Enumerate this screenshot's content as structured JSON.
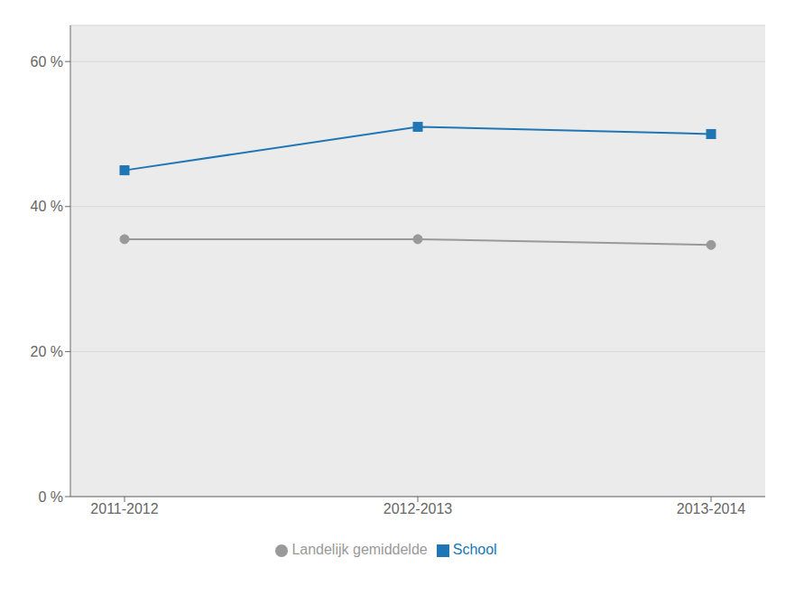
{
  "chart_data": {
    "type": "line",
    "categories": [
      "2011-2012",
      "2012-2013",
      "2013-2014"
    ],
    "series": [
      {
        "name": "School",
        "color": "#2076b4",
        "marker": "square",
        "values": [
          45.0,
          51.0,
          50.0
        ]
      },
      {
        "name": "Landelijk gemiddelde",
        "color": "#999999",
        "marker": "circle",
        "values": [
          35.5,
          35.5,
          34.7
        ]
      }
    ],
    "ylim": [
      0,
      65
    ],
    "yticks": [
      {
        "value": 0,
        "label": "0 %"
      },
      {
        "value": 20,
        "label": "20 %"
      },
      {
        "value": 40,
        "label": "40 %"
      },
      {
        "value": 60,
        "label": "60 %"
      }
    ],
    "grid": true,
    "legend": "bottom"
  }
}
